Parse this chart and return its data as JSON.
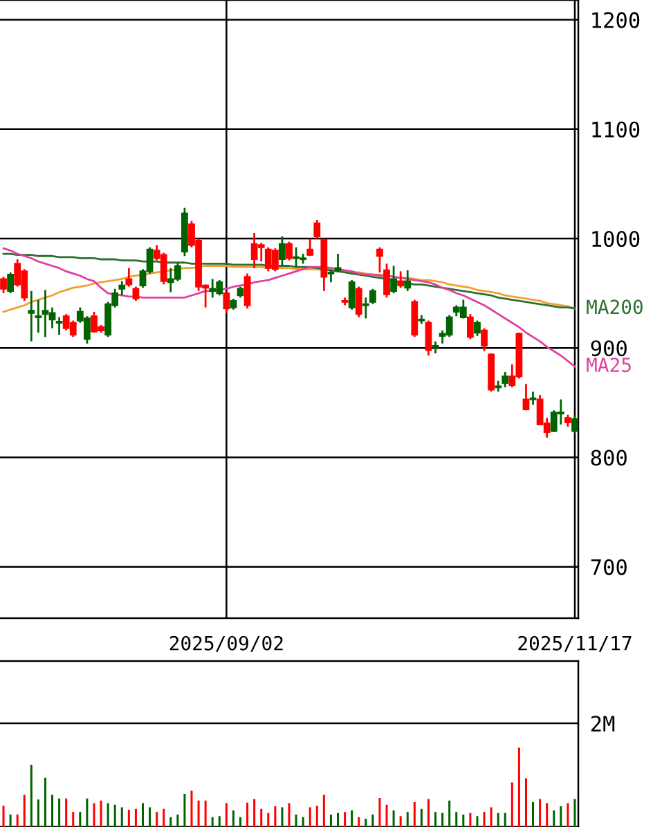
{
  "chart_data": [
    {
      "type": "candlestick",
      "categories": [
        null,
        null,
        null,
        null,
        null,
        null,
        null,
        null,
        null,
        null,
        null,
        null,
        null,
        null,
        null,
        null,
        null,
        null,
        null,
        null,
        null,
        null,
        null,
        null,
        null,
        null,
        null,
        null,
        null,
        null,
        null,
        null,
        "2025/09/02",
        null,
        null,
        null,
        null,
        null,
        null,
        null,
        null,
        null,
        null,
        null,
        null,
        null,
        null,
        null,
        null,
        null,
        null,
        null,
        null,
        null,
        null,
        null,
        null,
        null,
        null,
        null,
        null,
        null,
        null,
        null,
        null,
        null,
        null,
        null,
        null,
        null,
        null,
        null,
        null,
        null,
        null,
        null,
        null,
        null,
        null,
        null,
        null,
        null,
        "2025/11/17"
      ],
      "ohlc": [
        [
          963,
          965,
          950,
          954
        ],
        [
          952,
          969,
          950,
          967
        ],
        [
          977,
          981,
          956,
          958
        ],
        [
          970,
          972,
          943,
          946
        ],
        [
          932,
          952,
          906,
          934
        ],
        [
          928,
          944,
          914,
          929
        ],
        [
          931,
          953,
          910,
          934
        ],
        [
          926,
          937,
          918,
          932
        ],
        [
          923,
          928,
          912,
          924
        ],
        [
          929,
          931,
          916,
          918
        ],
        [
          923,
          925,
          910,
          912
        ],
        [
          925,
          937,
          923,
          933
        ],
        [
          908,
          929,
          904,
          927
        ],
        [
          929,
          933,
          914,
          915
        ],
        [
          919,
          921,
          914,
          916
        ],
        [
          912,
          942,
          910,
          940
        ],
        [
          939,
          954,
          937,
          950
        ],
        [
          954,
          961,
          948,
          957
        ],
        [
          963,
          973,
          956,
          958
        ],
        [
          954,
          956,
          943,
          945
        ],
        [
          957,
          972,
          955,
          970
        ],
        [
          970,
          992,
          968,
          990
        ],
        [
          989,
          994,
          980,
          982
        ],
        [
          985,
          987,
          958,
          961
        ],
        [
          960,
          973,
          951,
          963
        ],
        [
          963,
          978,
          961,
          975
        ],
        [
          988,
          1028,
          984,
          1023
        ],
        [
          1013,
          1016,
          992,
          994
        ],
        [
          998,
          1000,
          952,
          956
        ],
        [
          957,
          958,
          937,
          955
        ],
        [
          952,
          963,
          946,
          954
        ],
        [
          950,
          962,
          948,
          960
        ],
        [
          950,
          951,
          932,
          936
        ],
        [
          937,
          945,
          935,
          943
        ],
        [
          948,
          956,
          946,
          954
        ],
        [
          965,
          968,
          936,
          939
        ],
        [
          995,
          1005,
          973,
          981
        ],
        [
          994,
          996,
          979,
          992
        ],
        [
          990,
          992,
          970,
          973
        ],
        [
          989,
          991,
          970,
          972
        ],
        [
          981,
          1002,
          975,
          995
        ],
        [
          995,
          997,
          980,
          982
        ],
        [
          982,
          992,
          974,
          983
        ],
        [
          981,
          986,
          977,
          982
        ],
        [
          990,
          1000,
          984,
          985
        ],
        [
          1014,
          1017,
          1000,
          1002
        ],
        [
          999,
          1000,
          952,
          965
        ],
        [
          968,
          971,
          960,
          969
        ],
        [
          971,
          986,
          969,
          973
        ],
        [
          943,
          946,
          939,
          942
        ],
        [
          937,
          962,
          935,
          960
        ],
        [
          954,
          956,
          928,
          931
        ],
        [
          939,
          946,
          927,
          940
        ],
        [
          942,
          954,
          940,
          952
        ],
        [
          990,
          992,
          969,
          984
        ],
        [
          971,
          977,
          946,
          949
        ],
        [
          952,
          975,
          950,
          963
        ],
        [
          961,
          970,
          955,
          957
        ],
        [
          955,
          971,
          952,
          961
        ],
        [
          942,
          944,
          910,
          912
        ],
        [
          925,
          930,
          922,
          926
        ],
        [
          923,
          925,
          893,
          898
        ],
        [
          901,
          906,
          895,
          902
        ],
        [
          911,
          916,
          904,
          913
        ],
        [
          912,
          930,
          910,
          928
        ],
        [
          933,
          939,
          929,
          937
        ],
        [
          928,
          944,
          927,
          937
        ],
        [
          928,
          931,
          908,
          910
        ],
        [
          914,
          925,
          911,
          923
        ],
        [
          916,
          918,
          897,
          902
        ],
        [
          894,
          895,
          860,
          862
        ],
        [
          864,
          870,
          860,
          865
        ],
        [
          868,
          878,
          864,
          874
        ],
        [
          874,
          885,
          864,
          866
        ],
        [
          913,
          914,
          872,
          874
        ],
        [
          853,
          867,
          843,
          844
        ],
        [
          853,
          860,
          848,
          854
        ],
        [
          853,
          857,
          830,
          830
        ],
        [
          831,
          836,
          818,
          823
        ],
        [
          824,
          843,
          823,
          841
        ],
        [
          840,
          853,
          830,
          841
        ],
        [
          836,
          839,
          828,
          832
        ],
        [
          824,
          838,
          822,
          835
        ]
      ],
      "colors": [
        "#ff0000",
        "#006400",
        "#ff0000",
        "#ff0000",
        "#006400",
        "#006400",
        "#006400",
        "#006400",
        "#006400",
        "#ff0000",
        "#ff0000",
        "#006400",
        "#006400",
        "#ff0000",
        "#ff0000",
        "#006400",
        "#006400",
        "#006400",
        "#ff0000",
        "#ff0000",
        "#006400",
        "#006400",
        "#ff0000",
        "#ff0000",
        "#006400",
        "#006400",
        "#006400",
        "#ff0000",
        "#ff0000",
        "#ff0000",
        "#006400",
        "#006400",
        "#ff0000",
        "#006400",
        "#006400",
        "#ff0000",
        "#ff0000",
        "#ff0000",
        "#ff0000",
        "#ff0000",
        "#006400",
        "#ff0000",
        "#006400",
        "#006400",
        "#ff0000",
        "#ff0000",
        "#ff0000",
        "#006400",
        "#006400",
        "#ff0000",
        "#006400",
        "#ff0000",
        "#006400",
        "#006400",
        "#ff0000",
        "#ff0000",
        "#006400",
        "#ff0000",
        "#006400",
        "#ff0000",
        "#006400",
        "#ff0000",
        "#006400",
        "#006400",
        "#006400",
        "#006400",
        "#006400",
        "#ff0000",
        "#006400",
        "#ff0000",
        "#ff0000",
        "#006400",
        "#006400",
        "#ff0000",
        "#ff0000",
        "#ff0000",
        "#006400",
        "#ff0000",
        "#ff0000",
        "#006400",
        "#006400",
        "#ff0000",
        "#006400"
      ],
      "series": [
        {
          "type": "line",
          "color": "#f0a030",
          "values": [
            933,
            935,
            937,
            939,
            942,
            944,
            946,
            948,
            951,
            953,
            955,
            956,
            957,
            959,
            960,
            961,
            962,
            963,
            965,
            966,
            967,
            968,
            969,
            970,
            971,
            972,
            973,
            973,
            974,
            975,
            975,
            975,
            975,
            974,
            974,
            974,
            974,
            974,
            973,
            973,
            973,
            973,
            972,
            972,
            972,
            972,
            971,
            971,
            970,
            970,
            969,
            969,
            968,
            967,
            967,
            966,
            965,
            964,
            964,
            963,
            962,
            962,
            961,
            960,
            958,
            957,
            956,
            955,
            953,
            952,
            951,
            950,
            948,
            947,
            946,
            945,
            944,
            943,
            941,
            940,
            939,
            938,
            936
          ]
        },
        {
          "type": "line",
          "name": "MA200",
          "color": "#2f6f2f",
          "values": [
            986,
            986,
            985,
            985,
            985,
            984,
            984,
            984,
            983,
            983,
            983,
            982,
            982,
            982,
            981,
            981,
            981,
            980,
            980,
            980,
            979,
            979,
            979,
            978,
            978,
            978,
            978,
            977,
            977,
            977,
            977,
            977,
            977,
            976,
            976,
            976,
            976,
            976,
            975,
            975,
            975,
            975,
            974,
            974,
            974,
            973,
            972,
            971,
            970,
            969,
            968,
            967,
            966,
            965,
            964,
            963,
            961,
            960,
            959,
            958,
            958,
            957,
            956,
            955,
            954,
            953,
            952,
            951,
            950,
            949,
            948,
            946,
            945,
            944,
            943,
            942,
            941,
            940,
            939,
            938,
            937,
            937,
            936
          ]
        },
        {
          "type": "line",
          "name": "MA25",
          "color": "#e0409f",
          "values": [
            991,
            989,
            986,
            984,
            982,
            979,
            977,
            975,
            973,
            970,
            968,
            966,
            963,
            961,
            955,
            950,
            949,
            948,
            947,
            947,
            946,
            946,
            946,
            946,
            946,
            946,
            946,
            948,
            950,
            952,
            952,
            953,
            954,
            956,
            957,
            958,
            960,
            961,
            962,
            964,
            966,
            968,
            970,
            972,
            974,
            974,
            974,
            973,
            972,
            971,
            970,
            968,
            967,
            967,
            966,
            966,
            965,
            964,
            963,
            962,
            961,
            960,
            958,
            955,
            953,
            950,
            948,
            945,
            942,
            939,
            935,
            931,
            927,
            923,
            919,
            914,
            910,
            906,
            901,
            897,
            893,
            888,
            883
          ]
        }
      ],
      "ylim": [
        653,
        1218
      ],
      "yticks": [
        700,
        800,
        900,
        1000,
        1100,
        1200
      ],
      "grid": true
    },
    {
      "type": "bar",
      "categories": [
        null,
        null,
        null,
        null,
        null,
        null,
        null,
        null,
        null,
        null,
        null,
        null,
        null,
        null,
        null,
        null,
        null,
        null,
        null,
        null,
        null,
        null,
        null,
        null,
        null,
        null,
        null,
        null,
        null,
        null,
        null,
        null,
        "2025/09/02",
        null,
        null,
        null,
        null,
        null,
        null,
        null,
        null,
        null,
        null,
        null,
        null,
        null,
        null,
        null,
        null,
        null,
        null,
        null,
        null,
        null,
        null,
        null,
        null,
        null,
        null,
        null,
        null,
        null,
        null,
        null,
        null,
        null,
        null,
        null,
        null,
        null,
        null,
        null,
        null,
        null,
        null,
        null,
        null,
        null,
        null,
        null,
        null,
        null,
        "2025/11/17"
      ],
      "values": [
        0.41,
        0.24,
        0.24,
        0.62,
        1.2,
        0.53,
        0.95,
        0.62,
        0.55,
        0.55,
        0.29,
        0.29,
        0.55,
        0.46,
        0.51,
        0.46,
        0.43,
        0.38,
        0.33,
        0.35,
        0.46,
        0.38,
        0.29,
        0.35,
        0.19,
        0.24,
        0.64,
        0.7,
        0.51,
        0.51,
        0.19,
        0.21,
        0.46,
        0.32,
        0.19,
        0.47,
        0.54,
        0.35,
        0.27,
        0.4,
        0.38,
        0.46,
        0.24,
        0.19,
        0.38,
        0.41,
        0.62,
        0.24,
        0.27,
        0.29,
        0.32,
        0.19,
        0.16,
        0.24,
        0.56,
        0.43,
        0.32,
        0.21,
        0.29,
        0.48,
        0.35,
        0.54,
        0.29,
        0.27,
        0.51,
        0.29,
        0.24,
        0.27,
        0.21,
        0.29,
        0.38,
        0.27,
        0.27,
        0.86,
        1.53,
        0.94,
        0.48,
        0.54,
        0.46,
        0.32,
        0.4,
        0.46,
        0.54
      ],
      "colors": [
        "#ff0000",
        "#006400",
        "#ff0000",
        "#ff0000",
        "#006400",
        "#006400",
        "#006400",
        "#006400",
        "#006400",
        "#ff0000",
        "#ff0000",
        "#006400",
        "#006400",
        "#ff0000",
        "#ff0000",
        "#006400",
        "#006400",
        "#006400",
        "#ff0000",
        "#ff0000",
        "#006400",
        "#006400",
        "#ff0000",
        "#ff0000",
        "#006400",
        "#006400",
        "#006400",
        "#ff0000",
        "#ff0000",
        "#ff0000",
        "#006400",
        "#006400",
        "#ff0000",
        "#006400",
        "#006400",
        "#ff0000",
        "#ff0000",
        "#ff0000",
        "#ff0000",
        "#ff0000",
        "#006400",
        "#ff0000",
        "#006400",
        "#006400",
        "#ff0000",
        "#ff0000",
        "#ff0000",
        "#006400",
        "#006400",
        "#ff0000",
        "#006400",
        "#ff0000",
        "#006400",
        "#006400",
        "#ff0000",
        "#ff0000",
        "#006400",
        "#ff0000",
        "#006400",
        "#ff0000",
        "#006400",
        "#ff0000",
        "#006400",
        "#006400",
        "#006400",
        "#006400",
        "#006400",
        "#ff0000",
        "#006400",
        "#ff0000",
        "#ff0000",
        "#006400",
        "#006400",
        "#ff0000",
        "#ff0000",
        "#ff0000",
        "#006400",
        "#ff0000",
        "#ff0000",
        "#006400",
        "#006400",
        "#ff0000",
        "#006400"
      ],
      "ylim": [
        0,
        3.2
      ],
      "yticks": [
        {
          "value": 0,
          "label": null
        },
        {
          "value": 2,
          "label": "2M"
        }
      ],
      "grid": "y",
      "tick_labels": "y"
    }
  ]
}
